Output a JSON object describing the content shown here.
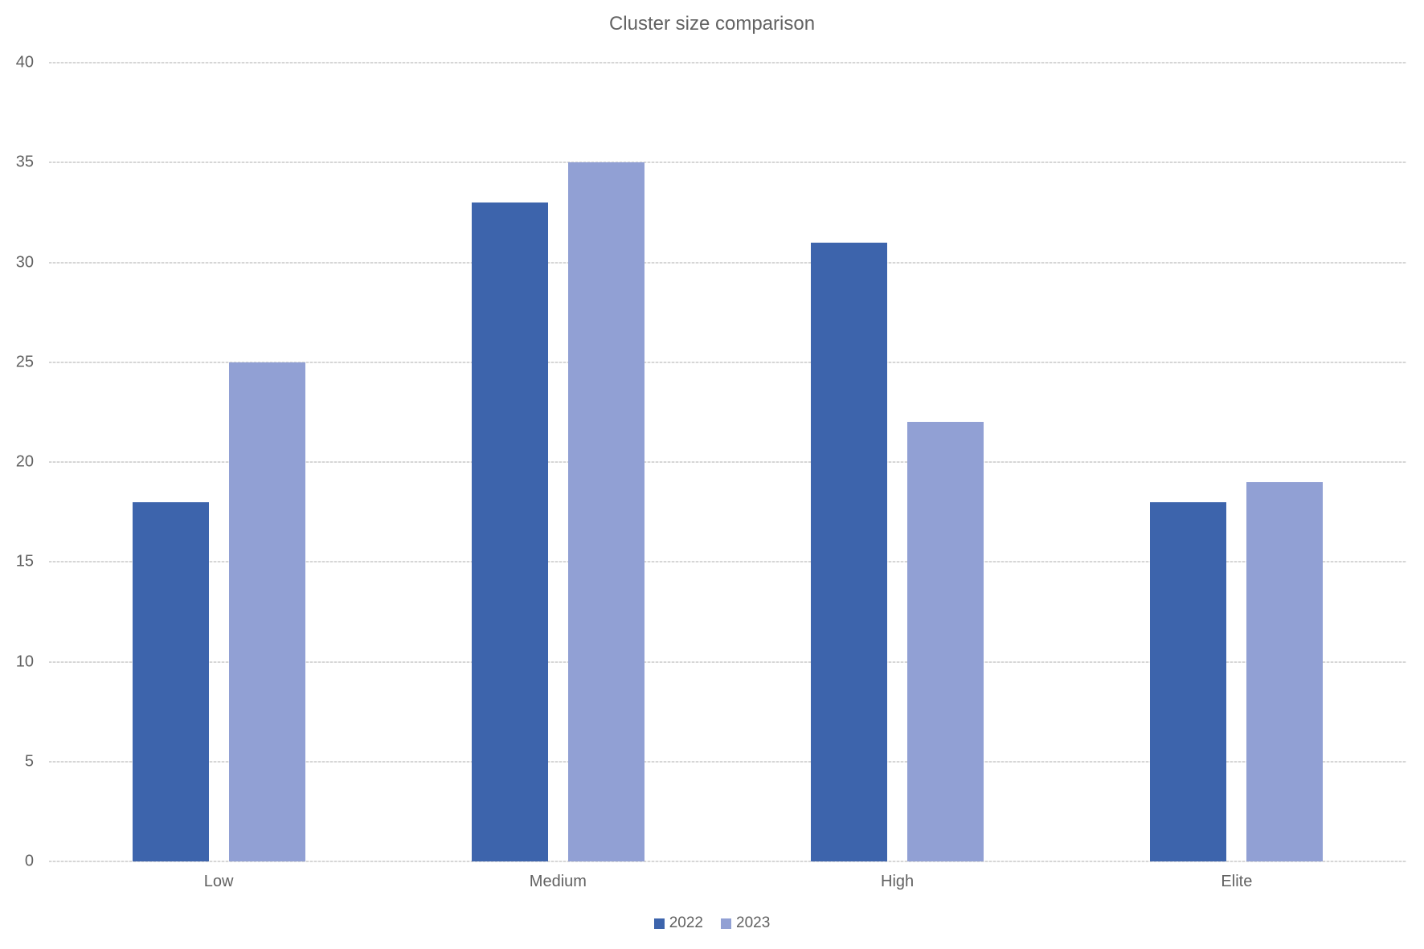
{
  "chart_data": {
    "type": "bar",
    "title": "Cluster size comparison",
    "categories": [
      "Low",
      "Medium",
      "High",
      "Elite"
    ],
    "series": [
      {
        "name": "2022",
        "color": "#3D64AC",
        "values": [
          18,
          33,
          31,
          18
        ]
      },
      {
        "name": "2023",
        "color": "#91A0D4",
        "values": [
          25,
          35,
          22,
          19
        ]
      }
    ],
    "ylim": [
      0,
      40
    ],
    "yticks": [
      0,
      5,
      10,
      15,
      20,
      25,
      30,
      35,
      40
    ],
    "xlabel": "",
    "ylabel": "",
    "grid": true,
    "legend_position": "bottom",
    "colors": {
      "title_text": "#636363",
      "axis_text": "#616161",
      "gridline": "#d6d6d6",
      "background": "#ffffff"
    }
  }
}
